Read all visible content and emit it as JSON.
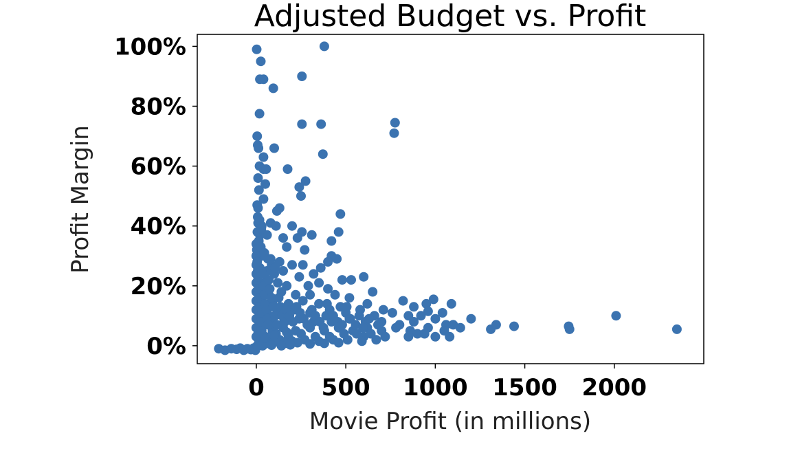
{
  "chart_data": {
    "type": "scatter",
    "title": "Adjusted Budget vs. Profit",
    "xlabel": "Movie Profit (in millions)",
    "ylabel": "Profit Margin",
    "xlim": [
      -330,
      2500
    ],
    "ylim": [
      -6,
      104
    ],
    "xticks": [
      0,
      500,
      1000,
      1500,
      2000
    ],
    "xtick_labels": [
      "0",
      "500",
      "1000",
      "1500",
      "2000"
    ],
    "yticks": [
      0,
      20,
      40,
      60,
      80,
      100
    ],
    "ytick_labels": [
      "0%",
      "20%",
      "40%",
      "60%",
      "80%",
      "100%"
    ],
    "grid": false,
    "marker_color": "#3b73b0",
    "points": [
      [
        -210,
        -1
      ],
      [
        -175,
        -1.5
      ],
      [
        -140,
        -1
      ],
      [
        -110,
        -1.2
      ],
      [
        -90,
        -0.8
      ],
      [
        -70,
        -1.5
      ],
      [
        -50,
        -1
      ],
      [
        -30,
        -1.3
      ],
      [
        -15,
        -0.8
      ],
      [
        -5,
        -1.5
      ],
      [
        2,
        99
      ],
      [
        25,
        95
      ],
      [
        20,
        89
      ],
      [
        40,
        89
      ],
      [
        95,
        86
      ],
      [
        380,
        100
      ],
      [
        255,
        90
      ],
      [
        18,
        77.5
      ],
      [
        255,
        74
      ],
      [
        362,
        74
      ],
      [
        775,
        74.5
      ],
      [
        770,
        71
      ],
      [
        5,
        70
      ],
      [
        8,
        67
      ],
      [
        12,
        66
      ],
      [
        40,
        63
      ],
      [
        100,
        66
      ],
      [
        372,
        64
      ],
      [
        18,
        60
      ],
      [
        40,
        59
      ],
      [
        55,
        59
      ],
      [
        175,
        59
      ],
      [
        10,
        56
      ],
      [
        50,
        54
      ],
      [
        240,
        53
      ],
      [
        275,
        55
      ],
      [
        250,
        50
      ],
      [
        15,
        52
      ],
      [
        40,
        49
      ],
      [
        5,
        47
      ],
      [
        10,
        46
      ],
      [
        130,
        46
      ],
      [
        115,
        45
      ],
      [
        470,
        44
      ],
      [
        10,
        41
      ],
      [
        30,
        40
      ],
      [
        80,
        41
      ],
      [
        110,
        40
      ],
      [
        200,
        40
      ],
      [
        255,
        38
      ],
      [
        310,
        37
      ],
      [
        460,
        38
      ],
      [
        20,
        37
      ],
      [
        60,
        37
      ],
      [
        150,
        36
      ],
      [
        230,
        36
      ],
      [
        420,
        35
      ],
      [
        170,
        33
      ],
      [
        270,
        32
      ],
      [
        420,
        30
      ],
      [
        30,
        30
      ],
      [
        80,
        29
      ],
      [
        130,
        28
      ],
      [
        200,
        27
      ],
      [
        260,
        27
      ],
      [
        360,
        26
      ],
      [
        400,
        28
      ],
      [
        450,
        29
      ],
      [
        20,
        26
      ],
      [
        60,
        25
      ],
      [
        100,
        24
      ],
      [
        150,
        25
      ],
      [
        240,
        23
      ],
      [
        320,
        24
      ],
      [
        530,
        22
      ],
      [
        600,
        23
      ],
      [
        10,
        22
      ],
      [
        50,
        21
      ],
      [
        120,
        21
      ],
      [
        170,
        20
      ],
      [
        290,
        20
      ],
      [
        350,
        21
      ],
      [
        480,
        22
      ],
      [
        400,
        19
      ],
      [
        20,
        18
      ],
      [
        70,
        17
      ],
      [
        140,
        18
      ],
      [
        220,
        17
      ],
      [
        300,
        17
      ],
      [
        440,
        17
      ],
      [
        520,
        16
      ],
      [
        650,
        18
      ],
      [
        30,
        15
      ],
      [
        90,
        14
      ],
      [
        180,
        14
      ],
      [
        260,
        15
      ],
      [
        350,
        14
      ],
      [
        470,
        13
      ],
      [
        620,
        14
      ],
      [
        710,
        12
      ],
      [
        820,
        15
      ],
      [
        880,
        13
      ],
      [
        950,
        14
      ],
      [
        990,
        15.5
      ],
      [
        1090,
        14
      ],
      [
        960,
        11.5
      ],
      [
        1040,
        11
      ],
      [
        1200,
        9
      ],
      [
        10,
        12
      ],
      [
        60,
        11
      ],
      [
        130,
        11
      ],
      [
        210,
        12
      ],
      [
        300,
        11
      ],
      [
        390,
        10
      ],
      [
        500,
        11
      ],
      [
        580,
        12
      ],
      [
        660,
        10
      ],
      [
        760,
        11
      ],
      [
        850,
        10
      ],
      [
        920,
        10
      ],
      [
        1000,
        9
      ],
      [
        1100,
        7
      ],
      [
        1140,
        6
      ],
      [
        1060,
        7
      ],
      [
        20,
        9
      ],
      [
        80,
        8
      ],
      [
        160,
        8
      ],
      [
        240,
        9
      ],
      [
        320,
        8
      ],
      [
        420,
        8
      ],
      [
        520,
        9
      ],
      [
        610,
        8
      ],
      [
        700,
        8
      ],
      [
        800,
        7
      ],
      [
        880,
        8
      ],
      [
        960,
        6
      ],
      [
        1050,
        5
      ],
      [
        1080,
        3
      ],
      [
        1000,
        3
      ],
      [
        940,
        4
      ],
      [
        1310,
        5.5
      ],
      [
        1340,
        7
      ],
      [
        1440,
        6.5
      ],
      [
        1750,
        5.5
      ],
      [
        1745,
        6.5
      ],
      [
        2010,
        10
      ],
      [
        2350,
        5.5
      ],
      [
        30,
        6
      ],
      [
        90,
        5
      ],
      [
        150,
        6
      ],
      [
        220,
        5
      ],
      [
        300,
        6
      ],
      [
        380,
        5
      ],
      [
        460,
        6
      ],
      [
        540,
        5
      ],
      [
        620,
        6
      ],
      [
        700,
        5
      ],
      [
        780,
        6
      ],
      [
        860,
        5
      ],
      [
        900,
        4
      ],
      [
        850,
        3
      ],
      [
        720,
        3
      ],
      [
        600,
        3
      ],
      [
        10,
        4
      ],
      [
        50,
        3
      ],
      [
        110,
        4
      ],
      [
        180,
        3
      ],
      [
        250,
        4
      ],
      [
        330,
        3
      ],
      [
        410,
        3
      ],
      [
        490,
        4
      ],
      [
        560,
        4
      ],
      [
        640,
        4
      ],
      [
        20,
        2
      ],
      [
        70,
        1.5
      ],
      [
        130,
        2
      ],
      [
        200,
        1.5
      ],
      [
        270,
        2
      ],
      [
        350,
        1.5
      ],
      [
        430,
        2
      ],
      [
        510,
        2
      ],
      [
        590,
        1.5
      ],
      [
        670,
        2
      ],
      [
        15,
        1
      ],
      [
        45,
        0.5
      ],
      [
        95,
        1
      ],
      [
        160,
        0.8
      ],
      [
        230,
        1
      ],
      [
        300,
        0.6
      ],
      [
        380,
        0.8
      ],
      [
        460,
        1
      ],
      [
        5,
        0
      ],
      [
        35,
        0
      ],
      [
        85,
        0.2
      ],
      [
        140,
        0
      ],
      [
        190,
        0.3
      ],
      [
        40,
        2.5
      ],
      [
        100,
        3.5
      ],
      [
        170,
        4.5
      ],
      [
        0,
        34
      ],
      [
        0,
        30
      ],
      [
        0,
        27
      ],
      [
        0,
        24
      ],
      [
        0,
        21
      ],
      [
        0,
        18
      ],
      [
        0,
        15
      ],
      [
        0,
        12
      ],
      [
        0,
        9
      ],
      [
        0,
        6
      ],
      [
        0,
        3
      ],
      [
        3,
        32
      ],
      [
        5,
        28
      ],
      [
        8,
        25
      ],
      [
        10,
        23
      ],
      [
        12,
        19
      ],
      [
        15,
        16
      ],
      [
        18,
        13
      ],
      [
        22,
        10
      ],
      [
        26,
        8
      ],
      [
        30,
        5
      ],
      [
        35,
        24
      ],
      [
        40,
        20
      ],
      [
        45,
        17
      ],
      [
        50,
        14
      ],
      [
        55,
        12
      ],
      [
        60,
        9
      ],
      [
        65,
        7
      ],
      [
        70,
        22
      ],
      [
        75,
        19
      ],
      [
        85,
        16
      ],
      [
        95,
        13
      ],
      [
        105,
        10
      ],
      [
        115,
        7
      ],
      [
        125,
        16
      ],
      [
        135,
        13
      ],
      [
        145,
        10
      ],
      [
        155,
        8
      ],
      [
        165,
        12
      ],
      [
        185,
        10
      ],
      [
        205,
        8
      ],
      [
        225,
        13
      ],
      [
        245,
        11
      ],
      [
        265,
        9
      ],
      [
        285,
        7
      ],
      [
        310,
        12
      ],
      [
        330,
        10
      ],
      [
        355,
        8
      ],
      [
        375,
        6
      ],
      [
        395,
        14
      ],
      [
        410,
        12
      ],
      [
        430,
        10
      ],
      [
        455,
        8
      ],
      [
        480,
        7
      ],
      [
        505,
        13
      ],
      [
        525,
        9
      ],
      [
        555,
        7
      ],
      [
        575,
        10
      ],
      [
        595,
        6
      ],
      [
        630,
        9
      ],
      [
        680,
        7
      ],
      [
        6,
        38
      ],
      [
        14,
        35
      ],
      [
        25,
        33
      ],
      [
        45,
        31
      ],
      [
        65,
        29
      ],
      [
        85,
        27
      ],
      [
        105,
        26
      ],
      [
        8,
        43
      ],
      [
        18,
        42
      ],
      [
        28,
        39
      ]
    ]
  }
}
